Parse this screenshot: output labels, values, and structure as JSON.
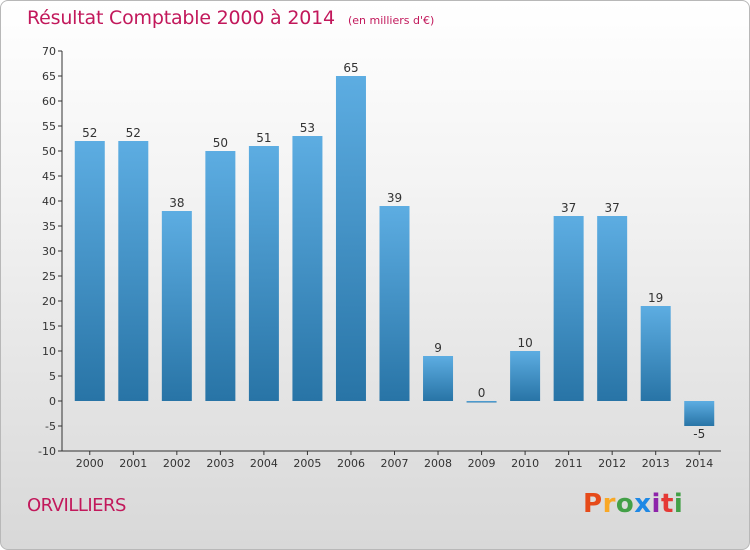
{
  "header": {
    "title": "Résultat Comptable 2000 à 2014",
    "subtitle": "(en milliers d'€)"
  },
  "footer": {
    "city": "ORVILLIERS",
    "logo_letters": [
      "P",
      "r",
      "o",
      "x",
      "i",
      "t",
      "i"
    ],
    "logo_colors": [
      "#e64a19",
      "#f9a825",
      "#43a047",
      "#1e88e5",
      "#8e24aa",
      "#e53935",
      "#43a047"
    ]
  },
  "colors": {
    "bar_top": "#5dade2",
    "bar_bottom": "#2874a6",
    "title": "#c2185b"
  },
  "chart_data": {
    "type": "bar",
    "title": "Résultat Comptable 2000 à 2014",
    "subtitle": "(en milliers d'€)",
    "xlabel": "",
    "ylabel": "",
    "categories": [
      "2000",
      "2001",
      "2002",
      "2003",
      "2004",
      "2005",
      "2006",
      "2007",
      "2008",
      "2009",
      "2010",
      "2011",
      "2012",
      "2013",
      "2014"
    ],
    "values": [
      52,
      52,
      38,
      50,
      51,
      53,
      65,
      39,
      9,
      0,
      10,
      37,
      37,
      19,
      -5
    ],
    "ylim": [
      -10,
      70
    ],
    "yticks": [
      -10,
      -5,
      0,
      5,
      10,
      15,
      20,
      25,
      30,
      35,
      40,
      45,
      50,
      55,
      60,
      65,
      70
    ],
    "grid": false,
    "legend": "none"
  }
}
